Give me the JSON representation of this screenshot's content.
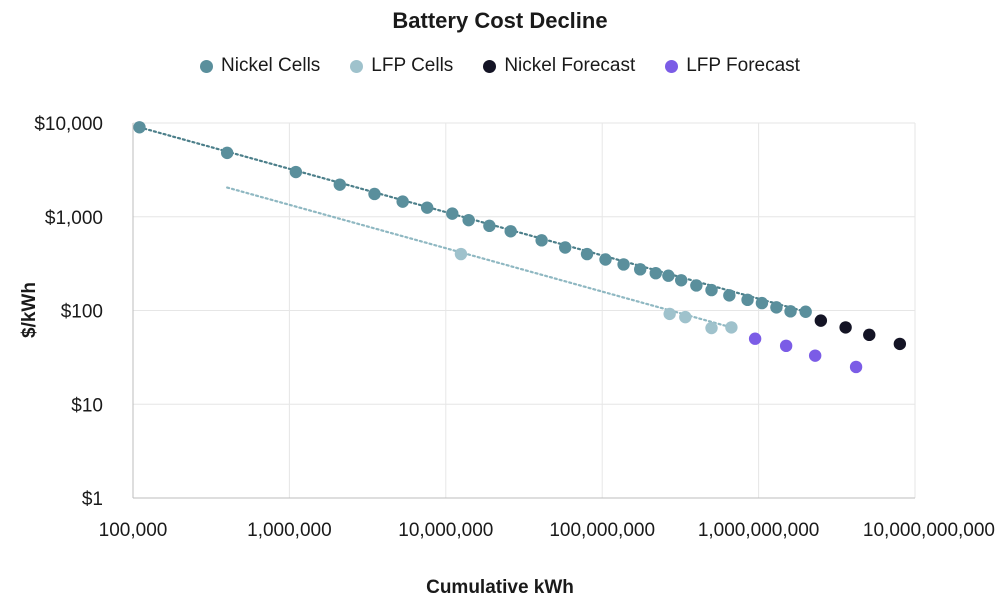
{
  "chart_data": {
    "type": "scatter",
    "title": "Battery Cost Decline",
    "xlabel": "Cumulative kWh",
    "ylabel": "$/kWh",
    "x_scale": "log",
    "y_scale": "log",
    "xlim": [
      100000,
      10000000000
    ],
    "ylim": [
      1,
      10000
    ],
    "x_ticks": [
      100000,
      1000000,
      10000000,
      100000000,
      1000000000,
      10000000000
    ],
    "x_tick_labels": [
      "100,000",
      "1,000,000",
      "10,000,000",
      "100,000,000",
      "1,000,000,000",
      "10,000,000,000"
    ],
    "y_ticks": [
      1,
      10,
      100,
      1000,
      10000
    ],
    "y_tick_labels": [
      "$1",
      "$10",
      "$100",
      "$1,000",
      "$10,000"
    ],
    "grid": true,
    "legend_position": "top",
    "series": [
      {
        "name": "Nickel Cells",
        "color": "#5a8f9c",
        "trendline": true,
        "points": [
          [
            110000,
            9000
          ],
          [
            400000,
            4800
          ],
          [
            1100000,
            3000
          ],
          [
            2100000,
            2200
          ],
          [
            3500000,
            1750
          ],
          [
            5300000,
            1450
          ],
          [
            7600000,
            1250
          ],
          [
            11000000,
            1080
          ],
          [
            14000000,
            920
          ],
          [
            19000000,
            800
          ],
          [
            26000000,
            700
          ],
          [
            41000000,
            560
          ],
          [
            58000000,
            470
          ],
          [
            80000000,
            400
          ],
          [
            105000000,
            350
          ],
          [
            137000000,
            310
          ],
          [
            175000000,
            275
          ],
          [
            220000000,
            250
          ],
          [
            265000000,
            235
          ],
          [
            320000000,
            210
          ],
          [
            400000000,
            185
          ],
          [
            500000000,
            165
          ],
          [
            650000000,
            145
          ],
          [
            850000000,
            130
          ],
          [
            1050000000,
            120
          ],
          [
            1300000000,
            108
          ],
          [
            1600000000,
            98
          ],
          [
            2000000000,
            97
          ]
        ]
      },
      {
        "name": "LFP Cells",
        "color": "#9fc2cc",
        "trendline": true,
        "points": [
          [
            12500000,
            400
          ],
          [
            270000000,
            92
          ],
          [
            340000000,
            85
          ],
          [
            500000000,
            65
          ],
          [
            670000000,
            66
          ]
        ]
      },
      {
        "name": "Nickel Forecast",
        "color": "#141425",
        "trendline": false,
        "points": [
          [
            2500000000,
            78
          ],
          [
            3600000000,
            66
          ],
          [
            5100000000,
            55
          ],
          [
            8000000000,
            44
          ]
        ]
      },
      {
        "name": "LFP Forecast",
        "color": "#7b5ce6",
        "trendline": false,
        "points": [
          [
            950000000,
            50
          ],
          [
            1500000000,
            42
          ],
          [
            2300000000,
            33
          ],
          [
            4200000000,
            25
          ]
        ]
      }
    ],
    "trendlines": [
      {
        "series": "Nickel Cells",
        "color": "#4c7f8a",
        "from": [
          110000,
          9000
        ],
        "to": [
          2000000000,
          97
        ]
      },
      {
        "series": "LFP Cells",
        "color": "#8fb8c2",
        "from": [
          400000,
          2050
        ],
        "to": [
          670000000,
          66
        ]
      }
    ]
  }
}
